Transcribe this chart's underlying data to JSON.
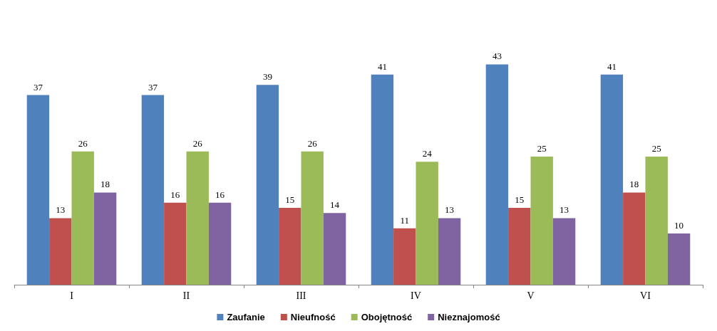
{
  "chart_data": {
    "type": "bar",
    "categories": [
      "I",
      "II",
      "III",
      "IV",
      "V",
      "VI"
    ],
    "series": [
      {
        "name": "Zaufanie",
        "color": "#4f81bd",
        "values": [
          37,
          37,
          39,
          41,
          43,
          41
        ]
      },
      {
        "name": "Nieufność",
        "color": "#c0504d",
        "values": [
          13,
          16,
          15,
          11,
          15,
          18
        ]
      },
      {
        "name": "Obojętność",
        "color": "#9bbb59",
        "values": [
          26,
          26,
          26,
          24,
          25,
          25
        ]
      },
      {
        "name": "Nieznajomość",
        "color": "#8064a2",
        "values": [
          18,
          16,
          14,
          13,
          13,
          10
        ]
      }
    ],
    "data_labels": true,
    "legend": "bottom"
  }
}
